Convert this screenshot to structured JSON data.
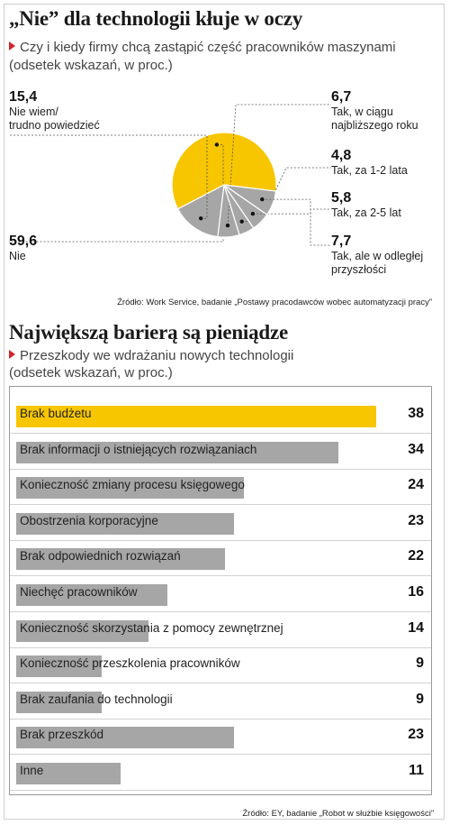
{
  "chart_data": [
    {
      "type": "pie",
      "title": "„Nie” dla technologii kłuje w oczy",
      "subtitle": "Czy i kiedy firmy chcą zastąpić część pracowników maszynami",
      "unit_note": "(odsetek wskazań, w proc.)",
      "slices": [
        {
          "label": "Nie",
          "value": 59.6,
          "value_text": "59,6",
          "color": "#f7c600"
        },
        {
          "label": "Nie wiem/ trudno powiedzieć",
          "label_lines": [
            "Nie wiem/",
            "trudno powiedzieć"
          ],
          "value": 15.4,
          "value_text": "15,4",
          "color": "#a6a6a6"
        },
        {
          "label": "Tak, w ciągu najbliższego roku",
          "label_lines": [
            "Tak, w ciągu",
            "najbliższego roku"
          ],
          "value": 6.7,
          "value_text": "6,7",
          "color": "#a6a6a6"
        },
        {
          "label": "Tak, za 1-2 lata",
          "value": 4.8,
          "value_text": "4,8",
          "color": "#a6a6a6"
        },
        {
          "label": "Tak, za 2-5 lat",
          "value": 5.8,
          "value_text": "5,8",
          "color": "#a6a6a6"
        },
        {
          "label": "Tak, ale w odległej przyszłości",
          "label_lines": [
            "Tak, ale w odległej",
            "przyszłości"
          ],
          "value": 7.7,
          "value_text": "7,7",
          "color": "#a6a6a6"
        }
      ],
      "source": "Źródło: Work Service, badanie „Postawy pracodawców wobec automatyzacji pracy”"
    },
    {
      "type": "bar",
      "orientation": "horizontal",
      "title": "Największą barierą są pieniądze",
      "subtitle": "Przeszkody we wdrażaniu nowych technologii",
      "unit_note": "(odsetek wskazań, w proc.)",
      "categories": [
        "Brak budżetu",
        "Brak informacji o istniejących rozwiązaniach",
        "Konieczność zmiany procesu księgowego",
        "Obostrzenia korporacyjne",
        "Brak odpowiednich rozwiązań",
        "Niechęć pracowników",
        "Konieczność skorzystania z pomocy zewnętrznej",
        "Konieczność przeszkolenia pracowników",
        "Brak zaufania do technologii",
        "Brak przeszkód",
        "Inne"
      ],
      "values": [
        38,
        34,
        24,
        23,
        22,
        16,
        14,
        9,
        9,
        23,
        11
      ],
      "highlight_index": 0,
      "colors": {
        "highlight": "#f7c600",
        "bar": "#a6a6a6"
      },
      "xlim": [
        0,
        38
      ],
      "source": "Źródło: EY, badanie „Robot w służbie księgowości”"
    }
  ]
}
